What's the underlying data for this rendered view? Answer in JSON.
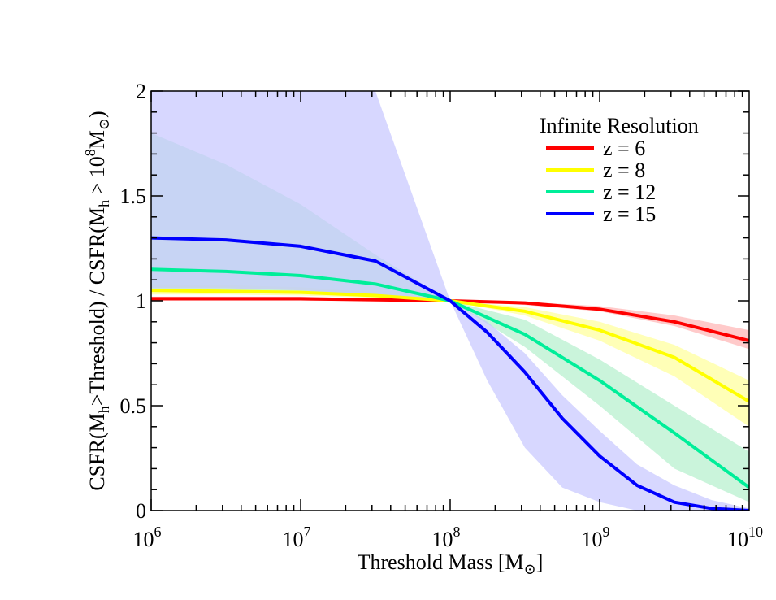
{
  "chart_data": {
    "type": "line",
    "xscale": "log",
    "xlim": [
      1000000,
      10000000000
    ],
    "ylim": [
      0,
      2
    ],
    "grid": false,
    "legend_placement": "top-right",
    "xlabel": {
      "main": "Threshold Mass [M",
      "sub": "⊙",
      "close": "]"
    },
    "ylabel": {
      "p1": "CSFR(M",
      "s1": "h",
      "p2": ">Threshold) / CSFR(M",
      "s2": "h",
      "p3": " > 10",
      "sup": "8",
      "p4": "M",
      "s3": "⊙",
      "p5": ")"
    },
    "x_ticks": [
      {
        "value": 1000000,
        "base": "10",
        "exp": "6"
      },
      {
        "value": 10000000,
        "base": "10",
        "exp": "7"
      },
      {
        "value": 100000000,
        "base": "10",
        "exp": "8"
      },
      {
        "value": 1000000000,
        "base": "10",
        "exp": "9"
      },
      {
        "value": 10000000000,
        "base": "10",
        "exp": "10"
      }
    ],
    "y_ticks": [
      {
        "value": 0,
        "label": "0"
      },
      {
        "value": 0.5,
        "label": "0.5"
      },
      {
        "value": 1,
        "label": "1"
      },
      {
        "value": 1.5,
        "label": "1.5"
      },
      {
        "value": 2,
        "label": "2"
      }
    ],
    "legend_title": "Infinite Resolution",
    "series": [
      {
        "name": "z = 6",
        "color": "#ff0000",
        "band_color": "#ffb3b3",
        "x": [
          1000000,
          3160000,
          10000000,
          31600000,
          100000000,
          316000000,
          1000000000,
          3160000000,
          10000000000
        ],
        "y": [
          1.01,
          1.01,
          1.01,
          1.005,
          1.0,
          0.99,
          0.96,
          0.9,
          0.81
        ],
        "band_lower": [
          1.0,
          1.0,
          1.0,
          1.0,
          1.0,
          0.98,
          0.95,
          0.88,
          0.77
        ],
        "band_upper": [
          1.02,
          1.02,
          1.02,
          1.01,
          1.0,
          0.995,
          0.975,
          0.93,
          0.86
        ]
      },
      {
        "name": "z = 8",
        "color": "#ffff00",
        "band_color": "#ffff99",
        "x": [
          1000000,
          3160000,
          10000000,
          31600000,
          100000000,
          316000000,
          1000000000,
          3160000000,
          10000000000
        ],
        "y": [
          1.05,
          1.045,
          1.04,
          1.025,
          1.0,
          0.95,
          0.86,
          0.73,
          0.52
        ],
        "band_lower": [
          1.03,
          1.03,
          1.025,
          1.015,
          1.0,
          0.93,
          0.81,
          0.64,
          0.4
        ],
        "band_upper": [
          1.08,
          1.075,
          1.065,
          1.04,
          1.0,
          0.97,
          0.9,
          0.79,
          0.62
        ]
      },
      {
        "name": "z = 12",
        "color": "#00ee99",
        "band_color": "#b3f0cc",
        "x": [
          1000000,
          3160000,
          10000000,
          31600000,
          100000000,
          316000000,
          1000000000,
          3160000000,
          10000000000
        ],
        "y": [
          1.15,
          1.14,
          1.12,
          1.08,
          1.0,
          0.84,
          0.62,
          0.37,
          0.11
        ],
        "band_lower": [
          1.05,
          1.05,
          1.04,
          1.02,
          1.0,
          0.78,
          0.5,
          0.2,
          0.04
        ],
        "band_upper": [
          1.8,
          1.65,
          1.46,
          1.22,
          1.0,
          0.91,
          0.72,
          0.5,
          0.28
        ]
      },
      {
        "name": "z = 15",
        "color": "#0000ff",
        "band_color": "#c6c6ff",
        "x": [
          1000000,
          3160000,
          10000000,
          31600000,
          100000000,
          177000000,
          316000000,
          562000000,
          1000000000,
          1780000000,
          3160000000,
          5620000000,
          10000000000
        ],
        "y": [
          1.3,
          1.29,
          1.26,
          1.19,
          1.0,
          0.85,
          0.66,
          0.44,
          0.26,
          0.12,
          0.04,
          0.01,
          0.0
        ],
        "band_lower": [
          1.06,
          1.06,
          1.05,
          1.03,
          1.0,
          0.62,
          0.3,
          0.11,
          0.04,
          0.0,
          0.0,
          0.0,
          0.0
        ],
        "band_upper": [
          2.0,
          2.0,
          2.0,
          2.0,
          1.0,
          0.9,
          0.75,
          0.55,
          0.38,
          0.22,
          0.12,
          0.05,
          0.01
        ]
      }
    ]
  }
}
